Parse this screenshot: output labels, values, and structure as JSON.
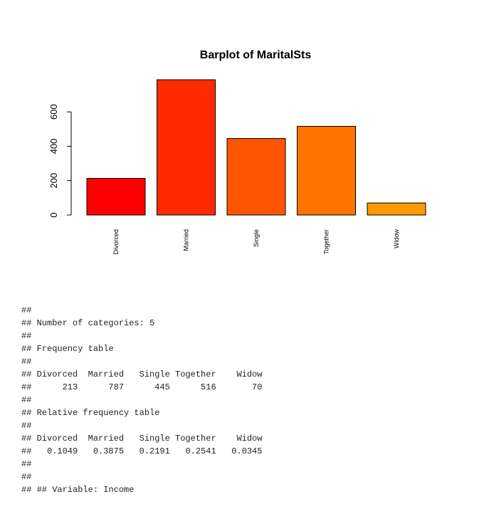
{
  "chart_data": {
    "type": "bar",
    "title": "Barplot of MaritalSts",
    "xlabel": "",
    "ylabel": "",
    "categories": [
      "Divorced",
      "Married",
      "Single",
      "Together",
      "Widow"
    ],
    "values": [
      213,
      787,
      445,
      516,
      70
    ],
    "ylim": [
      0,
      787
    ],
    "yticks": [
      0,
      200,
      400,
      600
    ],
    "colors": [
      "#ff0000",
      "#ff2a00",
      "#ff5500",
      "#ff7300",
      "#ff9900"
    ],
    "border_color": "#000000",
    "grid": false,
    "legend": "none"
  },
  "console_lines": [
    "##",
    "## Number of categories: 5",
    "##",
    "## Frequency table",
    "##",
    "## Divorced  Married   Single Together    Widow",
    "##      213      787      445      516       70",
    "##",
    "## Relative frequency table",
    "##",
    "## Divorced  Married   Single Together    Widow",
    "##   0.1049   0.3875   0.2191   0.2541   0.0345",
    "##",
    "##",
    "## ## Variable: Income"
  ]
}
